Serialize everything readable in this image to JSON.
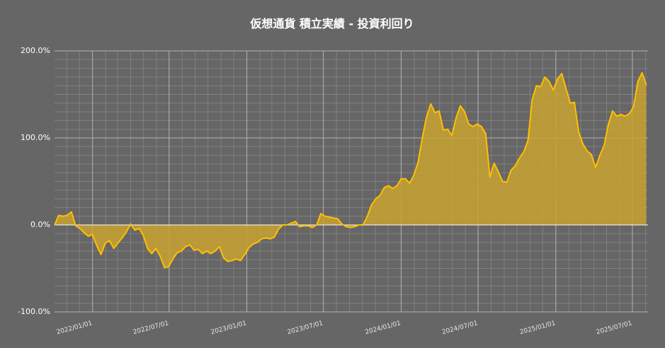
{
  "chart_data": {
    "type": "area",
    "title": "仮想通貨 積立実績 - 投資利回り",
    "color": "#ffc000",
    "fill": "#c9a230",
    "grid": true,
    "ylim": [
      -100,
      200
    ],
    "yticks": [
      {
        "value": -100,
        "label": "-100.0%"
      },
      {
        "value": 0,
        "label": "0.0%"
      },
      {
        "value": 100,
        "label": "100.0%"
      },
      {
        "value": 200,
        "label": "200.0%"
      }
    ],
    "minor_yticks": [
      -90,
      -80,
      -70,
      -60,
      -50,
      -40,
      -30,
      -20,
      -10,
      10,
      20,
      30,
      40,
      50,
      60,
      70,
      80,
      90,
      110,
      120,
      130,
      140,
      150,
      160,
      170,
      180,
      190
    ],
    "xlim": [
      "2021/10/03",
      "2025/08/07"
    ],
    "xticks": [
      "2022/01/01",
      "2022/07/01",
      "2023/01/01",
      "2023/07/01",
      "2024/01/01",
      "2024/07/01",
      "2025/01/01",
      "2025/07/01"
    ],
    "minor_xticks": [
      "2021/11/01",
      "2021/12/01",
      "2022/02/01",
      "2022/03/01",
      "2022/04/01",
      "2022/05/01",
      "2022/06/01",
      "2022/08/01",
      "2022/09/01",
      "2022/10/01",
      "2022/11/01",
      "2022/12/01",
      "2023/02/01",
      "2023/03/01",
      "2023/04/01",
      "2023/05/01",
      "2023/06/01",
      "2023/08/01",
      "2023/09/01",
      "2023/10/01",
      "2023/11/01",
      "2023/12/01",
      "2024/02/01",
      "2024/03/01",
      "2024/04/01",
      "2024/05/01",
      "2024/06/01",
      "2024/08/01",
      "2024/09/01",
      "2024/10/01",
      "2024/11/01",
      "2024/12/01",
      "2025/02/01",
      "2025/03/01",
      "2025/04/01",
      "2025/05/01",
      "2025/06/01",
      "2025/08/01"
    ],
    "x": [
      "2021/10/03",
      "2021/10/13",
      "2021/10/23",
      "2021/11/02",
      "2021/11/12",
      "2021/11/22",
      "2021/12/02",
      "2021/12/12",
      "2021/12/22",
      "2022/01/01",
      "2022/01/11",
      "2022/01/21",
      "2022/01/31",
      "2022/02/10",
      "2022/02/20",
      "2022/03/02",
      "2022/03/12",
      "2022/03/22",
      "2022/04/01",
      "2022/04/11",
      "2022/04/21",
      "2022/05/01",
      "2022/05/11",
      "2022/05/21",
      "2022/05/31",
      "2022/06/10",
      "2022/06/20",
      "2022/06/30",
      "2022/07/10",
      "2022/07/20",
      "2022/07/30",
      "2022/08/09",
      "2022/08/19",
      "2022/08/29",
      "2022/09/08",
      "2022/09/18",
      "2022/09/28",
      "2022/10/08",
      "2022/10/18",
      "2022/10/28",
      "2022/11/07",
      "2022/11/17",
      "2022/11/27",
      "2022/12/07",
      "2022/12/17",
      "2022/12/27",
      "2023/01/06",
      "2023/01/16",
      "2023/01/26",
      "2023/02/05",
      "2023/02/15",
      "2023/02/25",
      "2023/03/07",
      "2023/03/17",
      "2023/03/27",
      "2023/04/06",
      "2023/04/16",
      "2023/04/26",
      "2023/05/06",
      "2023/05/16",
      "2023/05/26",
      "2023/06/05",
      "2023/06/15",
      "2023/06/25",
      "2023/07/05",
      "2023/07/15",
      "2023/07/25",
      "2023/08/04",
      "2023/08/14",
      "2023/08/24",
      "2023/09/03",
      "2023/09/13",
      "2023/09/23",
      "2023/10/03",
      "2023/10/13",
      "2023/10/23",
      "2023/11/02",
      "2023/11/12",
      "2023/11/22",
      "2023/12/02",
      "2023/12/12",
      "2023/12/22",
      "2024/01/01",
      "2024/01/11",
      "2024/01/21",
      "2024/01/31",
      "2024/02/10",
      "2024/02/20",
      "2024/03/01",
      "2024/03/11",
      "2024/03/21",
      "2024/03/31",
      "2024/04/10",
      "2024/04/20",
      "2024/04/30",
      "2024/05/10",
      "2024/05/20",
      "2024/05/30",
      "2024/06/09",
      "2024/06/19",
      "2024/06/29",
      "2024/07/09",
      "2024/07/19",
      "2024/07/29",
      "2024/08/08",
      "2024/08/18",
      "2024/08/28",
      "2024/09/07",
      "2024/09/17",
      "2024/09/27",
      "2024/10/07",
      "2024/10/17",
      "2024/10/27",
      "2024/11/06",
      "2024/11/16",
      "2024/11/26",
      "2024/12/06",
      "2024/12/16",
      "2024/12/26",
      "2025/01/05",
      "2025/01/15",
      "2025/01/25",
      "2025/02/04",
      "2025/02/14",
      "2025/02/24",
      "2025/03/06",
      "2025/03/16",
      "2025/03/26",
      "2025/04/05",
      "2025/04/15",
      "2025/04/25",
      "2025/05/05",
      "2025/05/15",
      "2025/05/25",
      "2025/06/04",
      "2025/06/14",
      "2025/06/24",
      "2025/07/04",
      "2025/07/14",
      "2025/07/24",
      "2025/08/03"
    ],
    "values": [
      0,
      11,
      10,
      11,
      15,
      -1,
      -4,
      -9,
      -13,
      -11,
      -24,
      -34,
      -21,
      -18,
      -27,
      -21,
      -15,
      -8,
      1,
      -6,
      -4,
      -12,
      -27,
      -33,
      -27,
      -36,
      -49,
      -48,
      -39,
      -32,
      -30,
      -25,
      -23,
      -29,
      -28,
      -33,
      -30,
      -33,
      -30,
      -25,
      -38,
      -42,
      -41,
      -39,
      -41,
      -34,
      -26,
      -22,
      -20,
      -16,
      -15,
      -16,
      -14,
      -5,
      0,
      0,
      2,
      4,
      -2,
      -1,
      -1,
      -3,
      0,
      13,
      10,
      9,
      8,
      7,
      1,
      -2,
      -3,
      -2,
      0,
      0,
      10,
      23,
      30,
      34,
      43,
      45,
      42,
      45,
      53,
      53,
      48,
      57,
      72,
      100,
      124,
      139,
      129,
      131,
      109,
      110,
      103,
      123,
      137,
      130,
      116,
      113,
      116,
      113,
      105,
      55,
      71,
      61,
      50,
      49,
      63,
      68,
      77,
      84,
      97,
      144,
      160,
      159,
      170,
      165,
      155,
      168,
      174,
      157,
      140,
      141,
      107,
      93,
      85,
      81,
      66,
      80,
      91,
      115,
      131,
      125,
      127,
      125,
      128,
      136,
      165,
      175,
      161
    ]
  }
}
